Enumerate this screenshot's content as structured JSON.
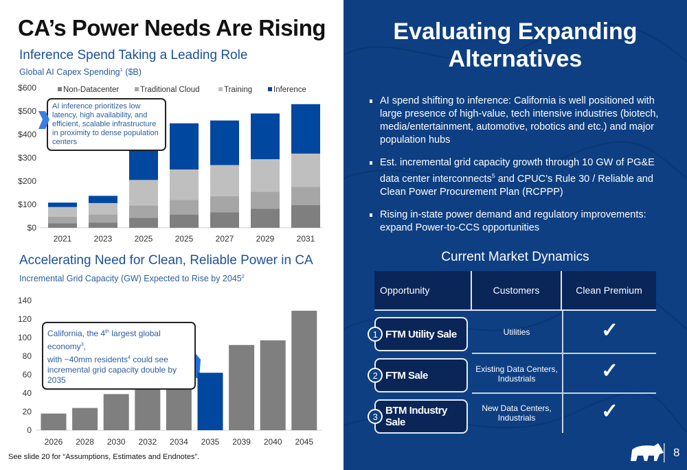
{
  "left": {
    "title": "CA’s Power Needs Are Rising",
    "section1_title": "Inference Spend Taking a Leading Role",
    "section1_subtitle": "Global AI Capex Spending",
    "section1_subtitle_sup": "1",
    "section1_subtitle_unit": " ($B)",
    "callout1": "AI inference prioritizes low latency, high availability, and efficient, scalable infrastructure in proximity to dense population centers",
    "section2_title": "Accelerating Need for Clean, Reliable Power in CA",
    "section2_subtitle": "Incremental Grid Capacity (GW) Expected to Rise by 2045",
    "section2_subtitle_sup": "2",
    "callout2": {
      "p1": "California, the 4",
      "s1": "th",
      "p2": " largest global economy",
      "s2": "3",
      "p3": ",",
      "p4": "with  ~40mm residents",
      "s4": "4",
      "p5": " could see",
      "p6": "incremental grid capacity double by 2035"
    },
    "footnote": "See slide 20 for “Assumptions, Estimates and Endnotes”."
  },
  "chart_data": [
    {
      "type": "bar",
      "stacked": true,
      "categories": [
        "2021",
        "2023",
        "2025",
        "2025",
        "2027",
        "2029",
        "2031"
      ],
      "series": [
        {
          "name": "Non-Datacenter",
          "color": "#7f7f7f",
          "values": [
            20,
            23,
            43,
            57,
            67,
            82,
            97
          ]
        },
        {
          "name": "Traditional Cloud",
          "color": "#a6a6a6",
          "values": [
            28,
            34,
            53,
            63,
            69,
            73,
            78
          ]
        },
        {
          "name": "Training",
          "color": "#bfbfbf",
          "values": [
            41,
            49,
            109,
            130,
            133,
            139,
            143
          ]
        },
        {
          "name": "Inference",
          "color": "#0047a0",
          "values": [
            19,
            31,
            170,
            198,
            191,
            196,
            212
          ]
        }
      ],
      "yticks": [
        "$0",
        "$100",
        "$200",
        "$300",
        "$400",
        "$500",
        "$600"
      ],
      "ylim": [
        0,
        600
      ],
      "legend": "top",
      "grid": false
    },
    {
      "type": "bar",
      "categories": [
        "2026",
        "2028",
        "2030",
        "2032",
        "2034",
        "2035",
        "2039",
        "2040",
        "2045"
      ],
      "values": [
        18,
        24,
        39,
        47,
        57,
        62,
        92,
        97,
        129
      ],
      "colors": [
        "#7f7f7f",
        "#7f7f7f",
        "#7f7f7f",
        "#7f7f7f",
        "#7f7f7f",
        "#0047a0",
        "#7f7f7f",
        "#7f7f7f",
        "#7f7f7f"
      ],
      "yticks": [
        "0",
        "20",
        "40",
        "60",
        "80",
        "100",
        "120",
        "140"
      ],
      "ylim": [
        0,
        140
      ],
      "grid": false
    }
  ],
  "right": {
    "title_line1": "Evaluating Expanding",
    "title_line2": "Alternatives",
    "bullets": [
      {
        "text": "AI spend shifting to inference: California is well positioned with large presence of high-value, tech intensive industries (biotech, media/entertainment, automotive, robotics and etc.) and major population hubs"
      },
      {
        "text": "Est. incremental grid capacity growth through 10 GW of PG&E data center interconnects",
        "sup": "5",
        "text2": " and CPUC’s Rule 30 / Reliable and Clean Power Procurement Plan (RCPPP)"
      },
      {
        "text": "Rising in-state power demand and regulatory improvements: expand Power-to-CCS opportunities"
      }
    ],
    "market_title": "Current Market Dynamics",
    "table": {
      "headers": [
        "Opportunity",
        "Customers",
        "Clean Premium"
      ],
      "rows": [
        {
          "num": "1",
          "opportunity": "FTM Utility Sale",
          "customers": "Utilities",
          "clean_premium": "✓"
        },
        {
          "num": "2",
          "opportunity": "FTM Sale",
          "customers": "Existing Data Centers, Industrials",
          "clean_premium": "✓"
        },
        {
          "num": "3",
          "opportunity": "BTM Industry Sale",
          "customers": "New Data Centers, Industrials",
          "clean_premium": "✓"
        }
      ]
    },
    "page_number": "8",
    "logo": "bear-logo"
  }
}
